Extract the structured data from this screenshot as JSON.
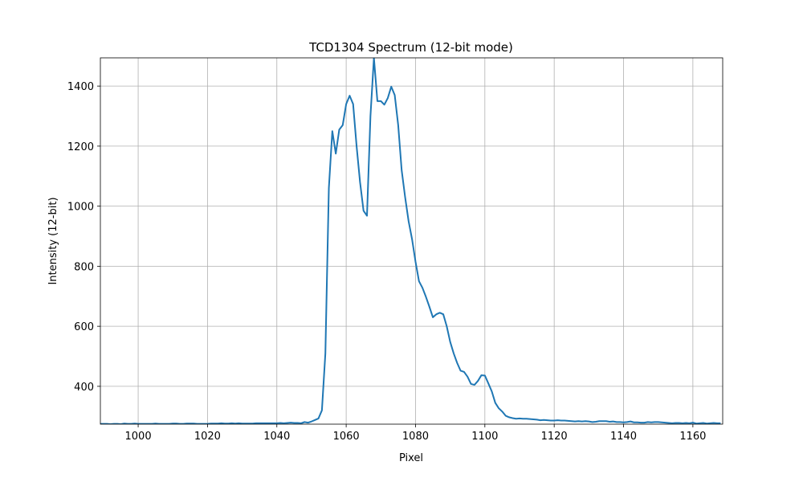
{
  "chart_data": {
    "type": "line",
    "title": "TCD1304 Spectrum (12-bit mode)",
    "x_label": "Pixel",
    "y_label": "Intensity (12-bit)",
    "x": [
      989,
      990,
      991,
      992,
      993,
      994,
      995,
      996,
      997,
      998,
      999,
      1000,
      1001,
      1002,
      1003,
      1004,
      1005,
      1006,
      1007,
      1008,
      1009,
      1010,
      1011,
      1012,
      1013,
      1014,
      1015,
      1016,
      1017,
      1018,
      1019,
      1020,
      1021,
      1022,
      1023,
      1024,
      1025,
      1026,
      1027,
      1028,
      1029,
      1030,
      1031,
      1032,
      1033,
      1034,
      1035,
      1036,
      1037,
      1038,
      1039,
      1040,
      1041,
      1042,
      1043,
      1044,
      1045,
      1046,
      1047,
      1048,
      1049,
      1050,
      1051,
      1052,
      1053,
      1054,
      1055,
      1056,
      1057,
      1058,
      1059,
      1060,
      1061,
      1062,
      1063,
      1064,
      1065,
      1066,
      1067,
      1068,
      1069,
      1070,
      1071,
      1072,
      1073,
      1074,
      1075,
      1076,
      1077,
      1078,
      1079,
      1080,
      1081,
      1082,
      1083,
      1084,
      1085,
      1086,
      1087,
      1088,
      1089,
      1090,
      1091,
      1092,
      1093,
      1094,
      1095,
      1096,
      1097,
      1098,
      1099,
      1100,
      1101,
      1102,
      1103,
      1104,
      1105,
      1106,
      1107,
      1108,
      1109,
      1110,
      1111,
      1112,
      1113,
      1114,
      1115,
      1116,
      1117,
      1118,
      1119,
      1120,
      1121,
      1122,
      1123,
      1124,
      1125,
      1126,
      1127,
      1128,
      1129,
      1130,
      1131,
      1132,
      1133,
      1134,
      1135,
      1136,
      1137,
      1138,
      1139,
      1140,
      1141,
      1142,
      1143,
      1144,
      1145,
      1146,
      1147,
      1148,
      1149,
      1150,
      1151,
      1152,
      1153,
      1154,
      1155,
      1156,
      1157,
      1158,
      1159,
      1160,
      1161,
      1162,
      1163,
      1164,
      1165,
      1166,
      1167,
      1168
    ],
    "values": [
      275,
      275,
      275,
      274,
      275,
      275,
      274,
      276,
      275,
      275,
      276,
      275,
      275,
      275,
      275,
      275,
      276,
      275,
      275,
      275,
      275,
      276,
      276,
      275,
      275,
      276,
      276,
      276,
      275,
      275,
      275,
      275,
      276,
      276,
      276,
      277,
      276,
      276,
      277,
      276,
      277,
      276,
      276,
      276,
      276,
      277,
      277,
      277,
      277,
      277,
      277,
      277,
      278,
      277,
      278,
      279,
      278,
      278,
      277,
      281,
      279,
      283,
      288,
      293,
      320,
      510,
      1060,
      1250,
      1175,
      1255,
      1270,
      1340,
      1368,
      1340,
      1200,
      1080,
      985,
      968,
      1300,
      1494,
      1350,
      1350,
      1338,
      1360,
      1398,
      1370,
      1270,
      1120,
      1030,
      950,
      890,
      815,
      750,
      728,
      698,
      665,
      630,
      640,
      645,
      640,
      600,
      548,
      510,
      478,
      452,
      448,
      432,
      408,
      405,
      418,
      437,
      436,
      410,
      383,
      345,
      327,
      316,
      302,
      297,
      294,
      292,
      293,
      292,
      292,
      291,
      290,
      289,
      287,
      288,
      287,
      286,
      286,
      287,
      286,
      286,
      285,
      284,
      283,
      284,
      283,
      284,
      283,
      281,
      282,
      284,
      284,
      284,
      282,
      283,
      281,
      281,
      280,
      281,
      283,
      280,
      280,
      279,
      279,
      281,
      280,
      281,
      281,
      280,
      279,
      278,
      277,
      278,
      278,
      277,
      278,
      277,
      279,
      276,
      277,
      278,
      276,
      277,
      278,
      277,
      277
    ],
    "color": "#1f77b4",
    "xlim": [
      989.1,
      1168.6
    ],
    "ylim": [
      274,
      1494
    ],
    "xticks": [
      1000,
      1020,
      1040,
      1060,
      1080,
      1100,
      1120,
      1140,
      1160
    ],
    "yticks": [
      400,
      600,
      800,
      1000,
      1200,
      1400
    ],
    "grid": true
  }
}
